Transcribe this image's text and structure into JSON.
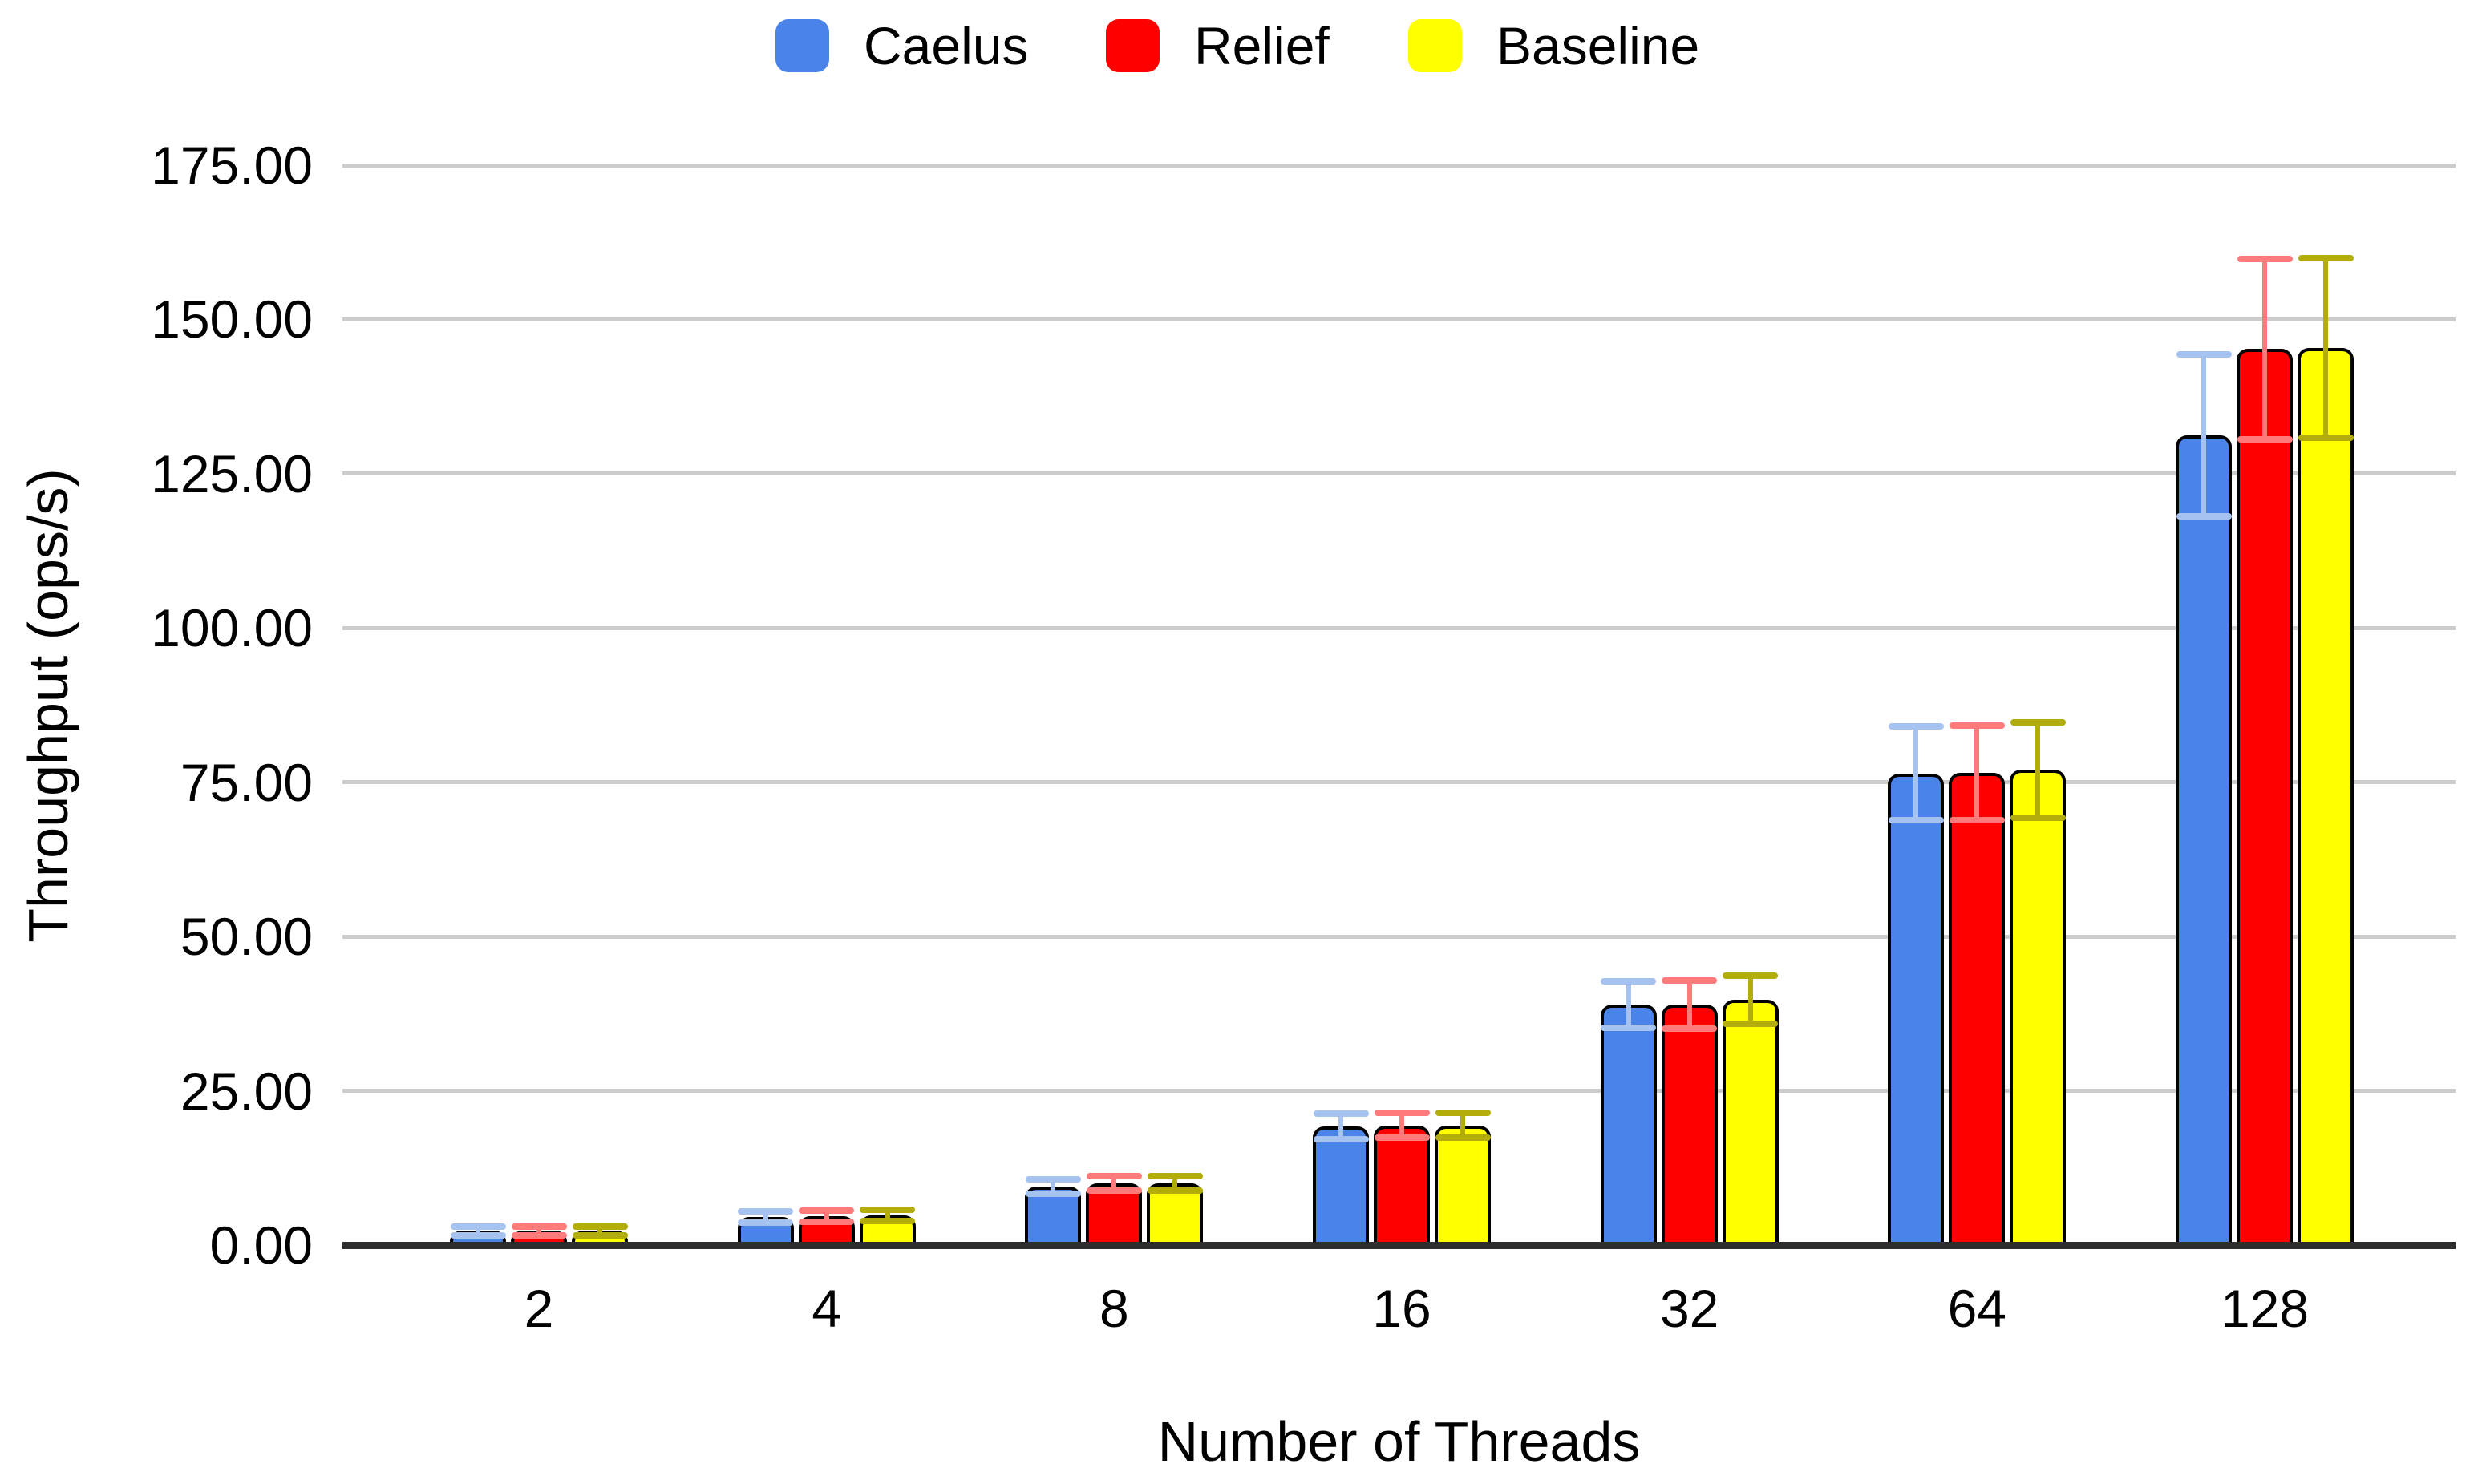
{
  "chart_data": {
    "type": "bar",
    "title": "",
    "xlabel": "Number of Threads",
    "ylabel": "Throughput (ops/s)",
    "categories": [
      "2",
      "4",
      "8",
      "16",
      "32",
      "64",
      "128"
    ],
    "y_tick_labels": [
      "0.00",
      "25.00",
      "50.00",
      "75.00",
      "100.00",
      "125.00",
      "150.00",
      "175.00"
    ],
    "ylim": [
      0,
      175
    ],
    "y_step": 25,
    "grid": true,
    "legend_position": "top",
    "series": [
      {
        "name": "Caelus",
        "color": "#4a84e8",
        "error_color": "#a6c3f0",
        "values": [
          2.3,
          4.6,
          9.5,
          19.2,
          39.0,
          76.4,
          131.2
        ],
        "errors": [
          0.7,
          0.9,
          1.2,
          2.1,
          3.8,
          7.6,
          13.1
        ]
      },
      {
        "name": "Relief",
        "color": "#ff0000",
        "error_color": "#ff7b7b",
        "values": [
          2.3,
          4.7,
          10.0,
          19.4,
          39.0,
          76.5,
          145.2
        ],
        "errors": [
          0.7,
          0.9,
          1.2,
          2.0,
          3.9,
          7.7,
          14.6
        ]
      },
      {
        "name": "Baseline",
        "color": "#ffff00",
        "error_color": "#b2ad0a",
        "values": [
          2.3,
          4.8,
          10.0,
          19.4,
          39.8,
          77.0,
          145.4
        ],
        "errors": [
          0.7,
          0.9,
          1.2,
          2.0,
          3.9,
          7.7,
          14.6
        ]
      }
    ],
    "colors": {
      "grid_color": "#cccccc",
      "axis_color": "#2e2e2e",
      "text_color": "#000000"
    }
  }
}
